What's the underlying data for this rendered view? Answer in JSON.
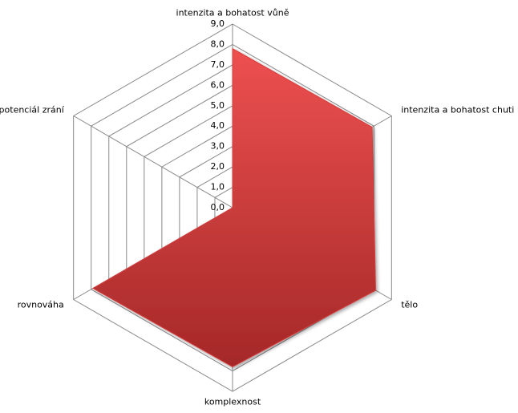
{
  "chart_data": {
    "type": "radar",
    "categories": [
      "intenzita a bohatost vůně",
      "intenzita a bohatost chuti",
      "tělo",
      "komplexnost",
      "rovnováha",
      "potenciál zrání"
    ],
    "values": [
      7.8,
      7.9,
      8.1,
      7.8,
      7.9,
      0
    ],
    "color": "#d63c3c",
    "ylim": [
      0,
      9
    ],
    "yticks": [
      {
        "value": 0,
        "label": "0,0"
      },
      {
        "value": 1,
        "label": "1,0"
      },
      {
        "value": 2,
        "label": "2,0"
      },
      {
        "value": 3,
        "label": "3,0"
      },
      {
        "value": 4,
        "label": "4,0"
      },
      {
        "value": 5,
        "label": "5,0"
      },
      {
        "value": 6,
        "label": "6,0"
      },
      {
        "value": 7,
        "label": "7,0"
      },
      {
        "value": 8,
        "label": "8,0"
      },
      {
        "value": 9,
        "label": "9,0"
      }
    ],
    "grid": true
  }
}
